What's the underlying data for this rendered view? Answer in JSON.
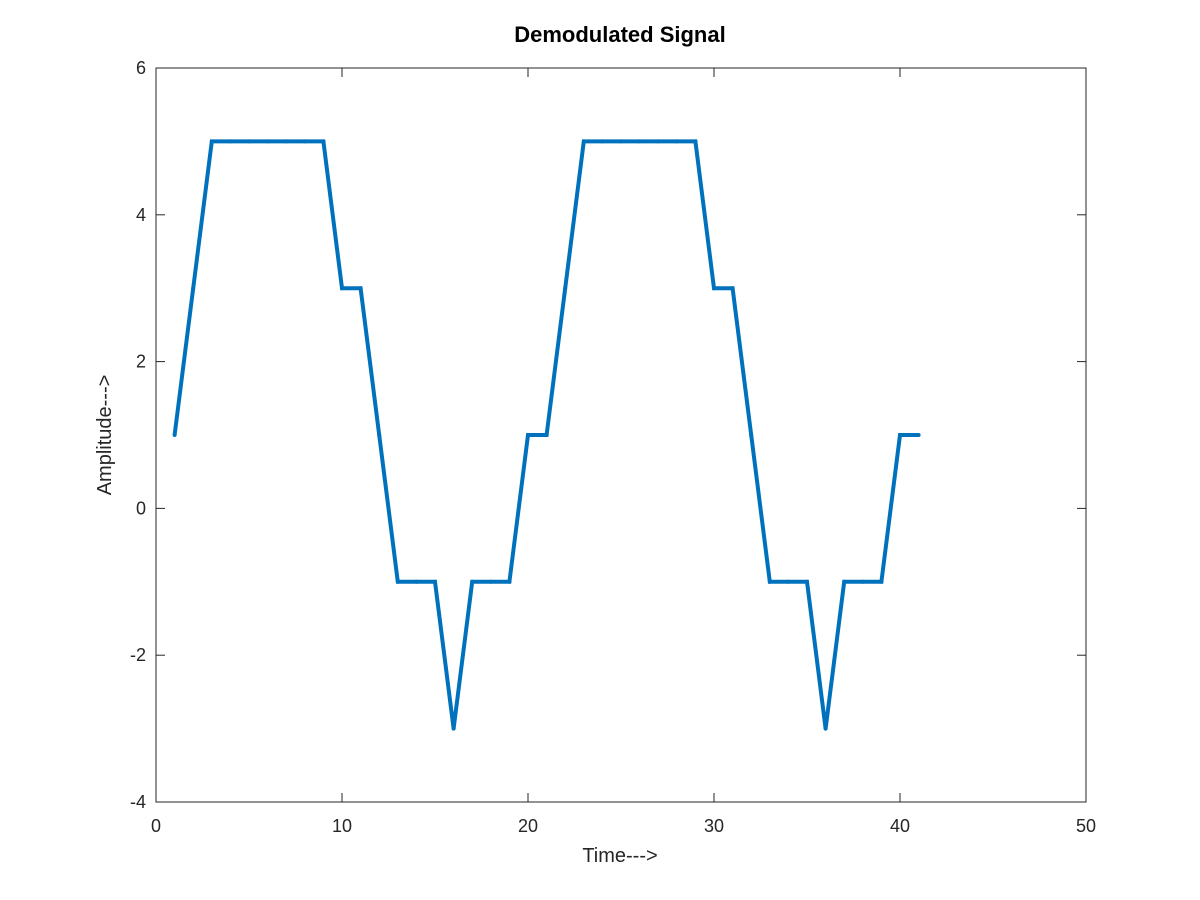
{
  "chart_data": {
    "type": "line",
    "title": "Demodulated Signal",
    "xlabel": "Time--->",
    "ylabel": "Amplitude--->",
    "xlim": [
      0,
      50
    ],
    "ylim": [
      -4,
      6
    ],
    "xticks": [
      0,
      10,
      20,
      30,
      40,
      50
    ],
    "yticks": [
      -4,
      -2,
      0,
      2,
      4,
      6
    ],
    "grid": false,
    "series": [
      {
        "color": "#0072BD",
        "x": [
          1,
          2,
          3,
          4,
          5,
          6,
          7,
          8,
          9,
          10,
          11,
          12,
          13,
          14,
          15,
          16,
          17,
          18,
          19,
          20,
          21,
          22,
          23,
          24,
          25,
          26,
          27,
          28,
          29,
          30,
          31,
          32,
          33,
          34,
          35,
          36,
          37,
          38,
          39,
          40,
          41
        ],
        "y": [
          1,
          3,
          5,
          5,
          5,
          5,
          5,
          5,
          5,
          3,
          3,
          1,
          -1,
          -1,
          -1,
          -3,
          -1,
          -1,
          -1,
          1,
          1,
          3,
          5,
          5,
          5,
          5,
          5,
          5,
          5,
          3,
          3,
          1,
          -1,
          -1,
          -1,
          -3,
          -1,
          -1,
          -1,
          1,
          1
        ]
      }
    ]
  }
}
